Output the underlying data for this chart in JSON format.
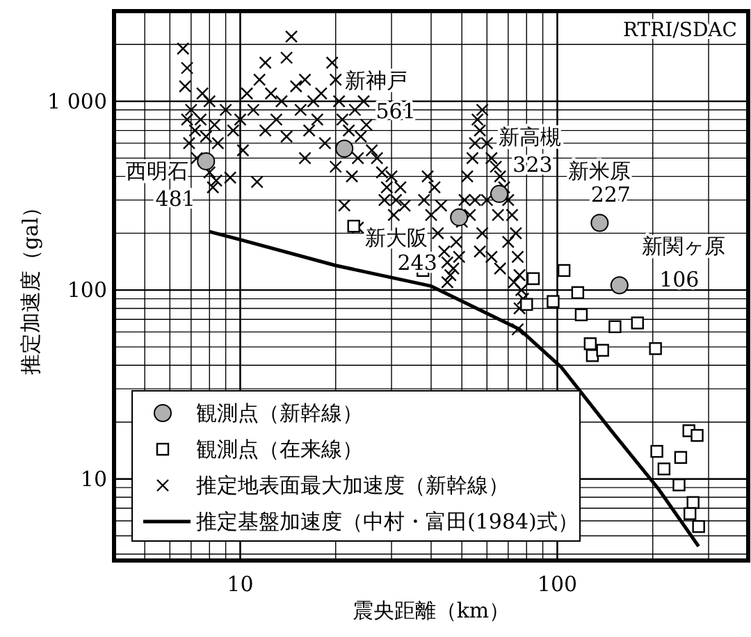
{
  "chart_data": {
    "type": "scatter",
    "xlabel": "震央距離（km）",
    "ylabel": "推定加速度（gal）",
    "log": "xy",
    "grid": true,
    "legend": "bottom left",
    "xlim": [
      4,
      400
    ],
    "ylim": [
      3.7,
      3000
    ],
    "xticks": [
      10,
      100
    ],
    "yticks": [
      10,
      100,
      {
        "value": 1000,
        "label": "1 000"
      }
    ],
    "annotations": [
      "RTRI/SDAC",
      {
        "text": "西明石",
        "x": 7.8,
        "y": 481
      },
      {
        "text": "新神戸",
        "x": 21.3,
        "y": 561
      },
      {
        "text": "新大阪",
        "x": 49,
        "y": 243
      },
      {
        "text": "新高槻",
        "x": 65.6,
        "y": 323
      },
      {
        "text": "新米原",
        "x": 136,
        "y": 227
      },
      {
        "text": "新関ヶ原",
        "x": 157,
        "y": 106
      }
    ],
    "series": [
      {
        "name": "観測点（新幹線）",
        "marker": "circle",
        "color": "#b0b0b0",
        "x": [
          7.8,
          21.3,
          49,
          65.6,
          136,
          157
        ],
        "values": [
          481,
          561,
          243,
          323,
          227,
          106
        ],
        "value_labels": [
          "481",
          "561",
          "243",
          "323",
          "227",
          "106"
        ]
      },
      {
        "name": "観測点（在来線）",
        "marker": "square",
        "color": "#000000",
        "x": [
          116,
          97,
          119,
          152,
          179,
          127,
          129,
          139,
          204,
          80,
          260,
          276,
          206,
          245,
          217,
          242,
          268,
          262,
          279,
          37.7,
          105,
          84,
          22.8
        ],
        "values": [
          97,
          87,
          74,
          64,
          67,
          52,
          45,
          48,
          49,
          84,
          18,
          17,
          14,
          13,
          11.3,
          9.3,
          7.5,
          6.55,
          5.6,
          127,
          127,
          115,
          218
        ]
      },
      {
        "name": "推定地表面最大加速度（新幹線）",
        "marker": "cross",
        "color": "#000000",
        "x": [
          6.6,
          6.8,
          6.7,
          7.0,
          7.2,
          6.9,
          7.5,
          7.8,
          8.0,
          8.3,
          8.5,
          7.3,
          8.0,
          8.4,
          8.2,
          7.6,
          6.8,
          9,
          9.5,
          10,
          10.5,
          11,
          11.5,
          12,
          12.5,
          13,
          13.5,
          14,
          14.5,
          15,
          15.5,
          16,
          16.5,
          17,
          17.5,
          18,
          18.5,
          10.2,
          11.3,
          9.3,
          12,
          16,
          14,
          19.5,
          20,
          20.5,
          21,
          22,
          23,
          24,
          25,
          23.5,
          22.5,
          21.3,
          20,
          24.5,
          26,
          23.5,
          27,
          28,
          29,
          30,
          31,
          32,
          33,
          28.5,
          30.5,
          38,
          40,
          42,
          44,
          45,
          46,
          48,
          50,
          41,
          43,
          47,
          49,
          51,
          39,
          45,
          52,
          54,
          55,
          56,
          58,
          57,
          60,
          62,
          64,
          66,
          68,
          70,
          72,
          74,
          75,
          76,
          77,
          78,
          76,
          75,
          60,
          65,
          70,
          55,
          58,
          62,
          66,
          73,
          53,
          57
        ],
        "values": [
          1900,
          1500,
          1200,
          900,
          700,
          600,
          800,
          650,
          1000,
          750,
          600,
          500,
          420,
          380,
          350,
          1100,
          800,
          900,
          700,
          800,
          1100,
          900,
          1300,
          1600,
          1100,
          800,
          1000,
          1700,
          2200,
          1200,
          900,
          1300,
          700,
          1000,
          800,
          1100,
          600,
          550,
          374,
          394,
          700,
          500,
          650,
          1600,
          1300,
          1000,
          800,
          700,
          900,
          650,
          750,
          500,
          400,
          281,
          450,
          1000,
          550,
          214,
          500,
          420,
          350,
          400,
          300,
          350,
          280,
          300,
          250,
          300,
          250,
          200,
          160,
          140,
          120,
          180,
          230,
          350,
          280,
          130,
          150,
          300,
          400,
          110,
          400,
          500,
          600,
          800,
          900,
          700,
          600,
          500,
          450,
          400,
          350,
          300,
          250,
          200,
          150,
          120,
          100,
          90,
          80,
          62,
          300,
          250,
          180,
          300,
          200,
          150,
          130,
          110,
          250,
          160
        ]
      },
      {
        "name": "推定基盤加速度（中村・富田(1984)式）",
        "type": "line",
        "marker": "none",
        "color": "#000000",
        "x": [
          8,
          10,
          20,
          40,
          76,
          103,
          148,
          208,
          279
        ],
        "values": [
          204,
          185,
          135,
          105,
          62,
          39,
          18,
          8.9,
          4.4
        ]
      }
    ]
  }
}
